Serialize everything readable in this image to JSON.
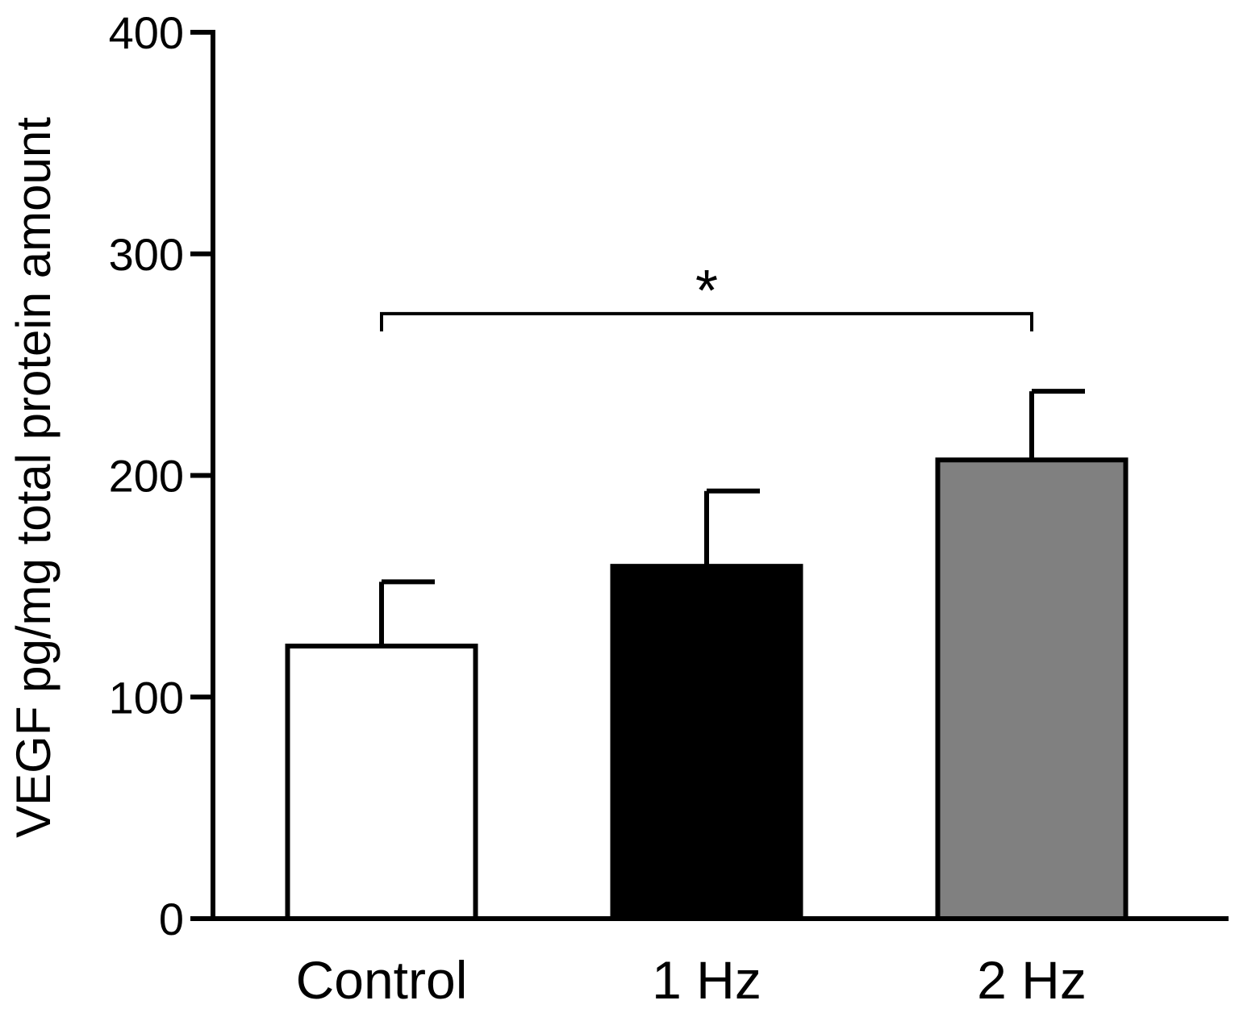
{
  "chart_data": {
    "type": "bar",
    "title": "",
    "xlabel": "",
    "ylabel": "VEGF pg/mg total protein amount",
    "categories": [
      "Control",
      "1 Hz",
      "2 Hz"
    ],
    "values": [
      123,
      159,
      207
    ],
    "error_upper": [
      152,
      193,
      238
    ],
    "bar_colors": [
      "#ffffff",
      "#000000",
      "#808080"
    ],
    "ylim": [
      0,
      400
    ],
    "yticks": [
      0,
      100,
      200,
      300,
      400
    ],
    "grid": false,
    "legend": "none",
    "annotations": [
      {
        "type": "significance-bracket",
        "from": "Control",
        "to": "2 Hz",
        "label": "*",
        "y": 273
      }
    ]
  }
}
